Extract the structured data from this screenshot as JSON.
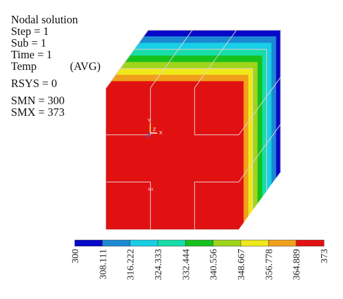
{
  "info": {
    "title": "Nodal solution",
    "step": "Step = 1",
    "sub": "Sub = 1",
    "time": "Time = 1",
    "temp_label": "Temp",
    "temp_avg": "(AVG)",
    "rsys": "RSYS = 0",
    "smn": "SMN = 300",
    "smx": "SMX = 373"
  },
  "markers": {
    "mx": "MX",
    "axis_y": "Y",
    "axis_z": "Z",
    "axis_x": "X"
  },
  "colors": {
    "hot": "#e21111",
    "hot_edge": "#b50f0f",
    "grid_line": "#e8d0d0",
    "bands": [
      "#0707c9",
      "#1b88d4",
      "#18cfe6",
      "#17dda8",
      "#16c21d",
      "#9fd51a",
      "#efe91a",
      "#f0a01b",
      "#e21111"
    ]
  },
  "colorbar": {
    "min": 300,
    "max": 373,
    "labels": [
      "300",
      "308.111",
      "316.222",
      "324.333",
      "332.444",
      "340.556",
      "348.667",
      "356.778",
      "364.889",
      "373"
    ]
  }
}
